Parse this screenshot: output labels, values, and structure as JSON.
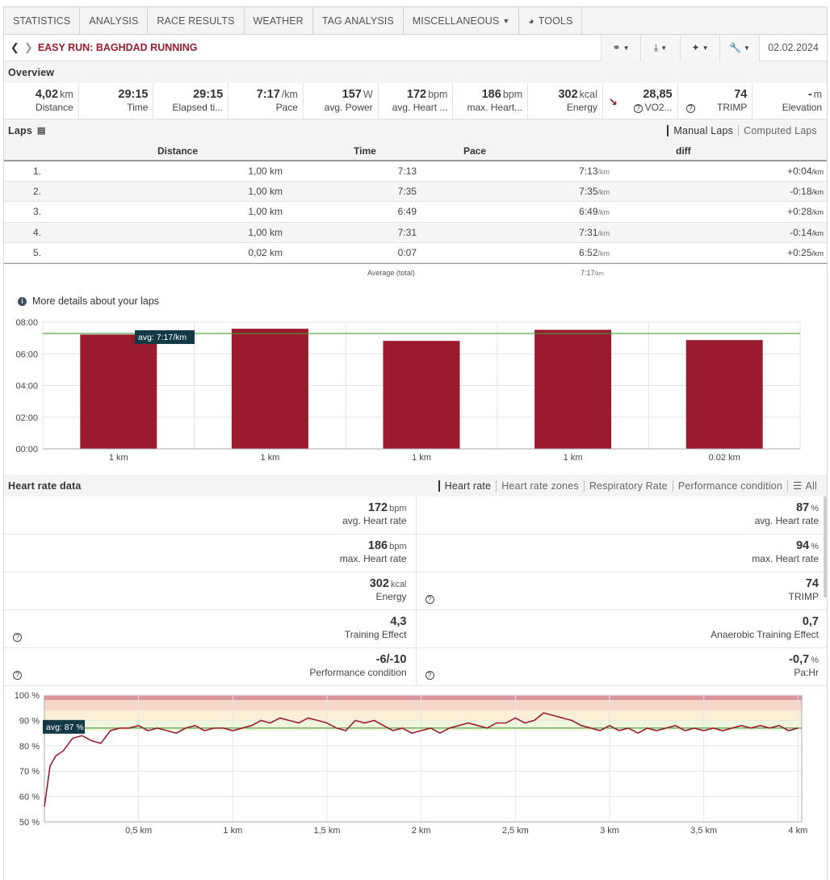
{
  "nav": {
    "tabs": [
      "Statistics",
      "Analysis",
      "Race results",
      "Weather",
      "Tag analysis",
      "Miscellaneous",
      "Tools"
    ]
  },
  "header": {
    "title": "Easy Run: Baghdad Running",
    "date": "02.02.2024"
  },
  "overview": {
    "heading": "Overview",
    "items": [
      {
        "value": "4,02",
        "unit": "km",
        "label": "Distance"
      },
      {
        "value": "29:15",
        "unit": "",
        "label": "Time"
      },
      {
        "value": "29:15",
        "unit": "",
        "label": "Elapsed ti..."
      },
      {
        "value": "7:17",
        "unit": "/km",
        "label": "Pace"
      },
      {
        "value": "157",
        "unit": "W",
        "label": "avg. Power"
      },
      {
        "value": "172",
        "unit": "bpm",
        "label": "avg. Heart ..."
      },
      {
        "value": "186",
        "unit": "bpm",
        "label": "max. Heart..."
      },
      {
        "value": "302",
        "unit": "kcal",
        "label": "Energy"
      },
      {
        "value": "28,85",
        "unit": "",
        "label": "VO2..."
      },
      {
        "value": "74",
        "unit": "",
        "label": "TRIMP"
      },
      {
        "value": "-",
        "unit": "m",
        "label": "Elevation"
      }
    ]
  },
  "laps": {
    "heading": "Laps",
    "options": [
      "Manual Laps",
      "Computed Laps"
    ],
    "columns": [
      "Distance",
      "Time",
      "Pace",
      "diff"
    ],
    "pace_unit": "/km",
    "rows": [
      {
        "no": "1.",
        "distance": "1,00 km",
        "time": "7:13",
        "pace": "7:13",
        "diff": "+0:04"
      },
      {
        "no": "2.",
        "distance": "1,00 km",
        "time": "7:35",
        "pace": "7:35",
        "diff": "-0:18"
      },
      {
        "no": "3.",
        "distance": "1,00 km",
        "time": "6:49",
        "pace": "6:49",
        "diff": "+0:28"
      },
      {
        "no": "4.",
        "distance": "1,00 km",
        "time": "7:31",
        "pace": "7:31",
        "diff": "-0:14"
      },
      {
        "no": "5.",
        "distance": "0,02 km",
        "time": "0:07",
        "pace": "6:52",
        "diff": "+0:25"
      }
    ],
    "total_label": "Average (total)",
    "total_pace": "7:17",
    "details_link": "More details about your laps"
  },
  "pace_chart": {
    "type": "bar",
    "categories": [
      "1 km",
      "1 km",
      "1 km",
      "1 km",
      "0.02 km"
    ],
    "values_seconds": [
      433,
      455,
      409,
      451,
      412
    ],
    "y_ticks": [
      "00:00",
      "02:00",
      "04:00",
      "06:00",
      "08:00"
    ],
    "ylim_seconds": [
      0,
      480
    ],
    "avg_seconds": 437,
    "avg_label": "avg: 7:17/km",
    "bar_color": "#9a1a2e"
  },
  "heart": {
    "heading": "Heart rate data",
    "options": [
      "Heart rate",
      "Heart rate zones",
      "Respiratory Rate",
      "Performance condition",
      "All"
    ],
    "rows": [
      [
        {
          "value": "172",
          "unit": "bpm",
          "label": "avg. Heart rate",
          "q": false
        },
        {
          "value": "87",
          "unit": "%",
          "label": "avg. Heart rate",
          "q": false
        }
      ],
      [
        {
          "value": "186",
          "unit": "bpm",
          "label": "max. Heart rate",
          "q": false
        },
        {
          "value": "94",
          "unit": "%",
          "label": "max. Heart rate",
          "q": false
        }
      ],
      [
        {
          "value": "302",
          "unit": "kcal",
          "label": "Energy",
          "q": false
        },
        {
          "value": "74",
          "unit": "",
          "label": "TRIMP",
          "q": true
        }
      ],
      [
        {
          "value": "4,3",
          "unit": "",
          "label": "Training Effect",
          "q": true
        },
        {
          "value": "0,7",
          "unit": "",
          "label": "Anaerobic Training Effect",
          "q": false
        }
      ],
      [
        {
          "value": "-6/-10",
          "unit": "",
          "label": "Performance condition",
          "q": true
        },
        {
          "value": "-0,7",
          "unit": "%",
          "label": "Pa:Hr",
          "q": true
        }
      ]
    ]
  },
  "chart_data": {
    "type": "line",
    "x_unit": "km",
    "x_ticks": [
      "0,5 km",
      "1 km",
      "1,5 km",
      "2 km",
      "2,5 km",
      "3 km",
      "3,5 km",
      "4 km"
    ],
    "y_ticks": [
      "50 %",
      "60 %",
      "70 %",
      "80 %",
      "90 %",
      "100 %"
    ],
    "xlim": [
      0,
      4.02
    ],
    "ylim": [
      50,
      100
    ],
    "avg_value": 87,
    "avg_label": "avg: 87 %",
    "line_color": "#9a1e2e",
    "x": [
      0,
      0.03,
      0.06,
      0.1,
      0.15,
      0.2,
      0.25,
      0.3,
      0.35,
      0.4,
      0.45,
      0.5,
      0.55,
      0.6,
      0.65,
      0.7,
      0.75,
      0.8,
      0.85,
      0.9,
      0.95,
      1.0,
      1.05,
      1.1,
      1.15,
      1.2,
      1.25,
      1.3,
      1.35,
      1.4,
      1.45,
      1.5,
      1.55,
      1.6,
      1.65,
      1.7,
      1.75,
      1.8,
      1.85,
      1.9,
      1.95,
      2.0,
      2.05,
      2.1,
      2.15,
      2.2,
      2.25,
      2.3,
      2.35,
      2.4,
      2.45,
      2.5,
      2.55,
      2.6,
      2.65,
      2.7,
      2.75,
      2.8,
      2.85,
      2.9,
      2.95,
      3.0,
      3.05,
      3.1,
      3.15,
      3.2,
      3.25,
      3.3,
      3.35,
      3.4,
      3.45,
      3.5,
      3.55,
      3.6,
      3.65,
      3.7,
      3.75,
      3.8,
      3.85,
      3.9,
      3.95,
      4.0
    ],
    "values": [
      56,
      72,
      76,
      78,
      83,
      84,
      82,
      81,
      86,
      87,
      87,
      88,
      86,
      87,
      86,
      85,
      87,
      88,
      86,
      87,
      87,
      86,
      87,
      88,
      90,
      89,
      91,
      90,
      89,
      91,
      90,
      89,
      87,
      86,
      90,
      89,
      90,
      88,
      86,
      87,
      85,
      86,
      87,
      85,
      87,
      88,
      89,
      88,
      87,
      89,
      89,
      91,
      89,
      90,
      93,
      92,
      91,
      90,
      88,
      87,
      86,
      88,
      86,
      87,
      85,
      87,
      86,
      87,
      88,
      86,
      87,
      86,
      87,
      86,
      87,
      88,
      87,
      88,
      87,
      88,
      86,
      87
    ],
    "zones": [
      {
        "from": 98,
        "to": 100,
        "color": "#d9979d"
      },
      {
        "from": 94,
        "to": 98,
        "color": "#f8d6c7"
      },
      {
        "from": 90,
        "to": 94,
        "color": "#fbefd6"
      },
      {
        "from": 86,
        "to": 90,
        "color": "#eef5dc"
      }
    ]
  }
}
